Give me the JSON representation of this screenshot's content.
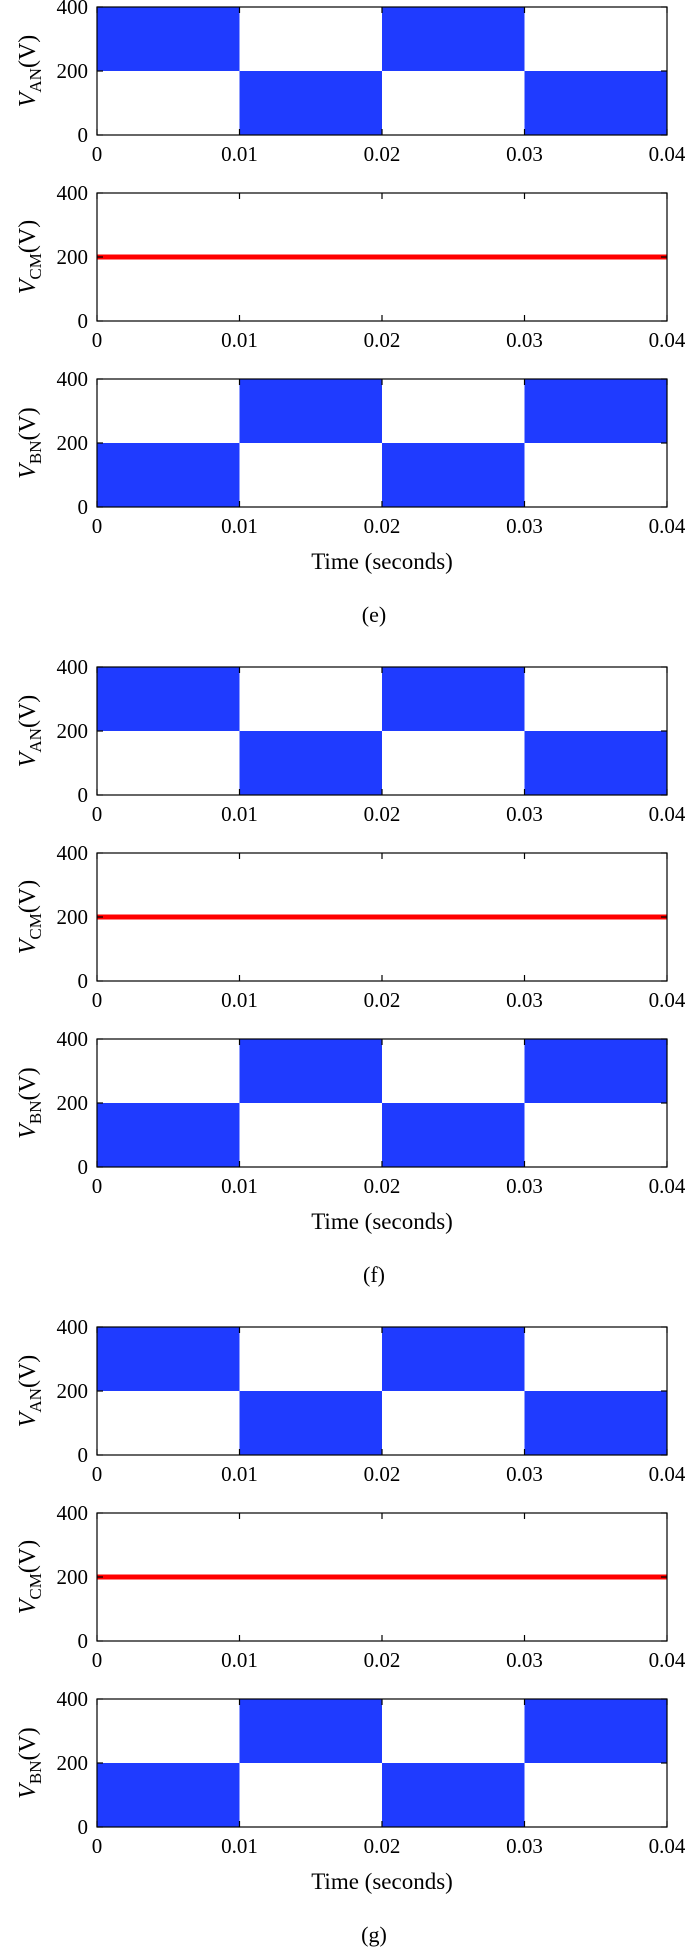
{
  "chart_data": [
    {
      "caption": "(e)",
      "xlabel": "Time (seconds)",
      "x_ticks": [
        "0",
        "0.01",
        "0.02",
        "0.03",
        "0.04"
      ],
      "xlim": [
        0,
        0.04
      ],
      "panels": [
        {
          "type": "area",
          "ylabel_main": "V",
          "ylabel_sub": "AN",
          "ylabel_unit": "(V)",
          "ylim": [
            0,
            400
          ],
          "y_ticks": [
            "0",
            "200",
            "400"
          ],
          "series": [
            {
              "color": "#1f3bff",
              "segments": [
                {
                  "x0": 0,
                  "x1": 0.01,
                  "low": 200,
                  "high": 400
                },
                {
                  "x0": 0.01,
                  "x1": 0.02,
                  "low": 0,
                  "high": 200
                },
                {
                  "x0": 0.02,
                  "x1": 0.03,
                  "low": 200,
                  "high": 400
                },
                {
                  "x0": 0.03,
                  "x1": 0.04,
                  "low": 0,
                  "high": 200
                }
              ]
            }
          ]
        },
        {
          "type": "line",
          "ylabel_main": "V",
          "ylabel_sub": "CM",
          "ylabel_unit": "(V)",
          "ylim": [
            0,
            400
          ],
          "y_ticks": [
            "0",
            "200",
            "400"
          ],
          "series": [
            {
              "color": "#ff0000",
              "x": [
                0,
                0.04
              ],
              "y": [
                200,
                200
              ]
            }
          ]
        },
        {
          "type": "area",
          "ylabel_main": "V",
          "ylabel_sub": "BN",
          "ylabel_unit": "(V)",
          "ylim": [
            0,
            400
          ],
          "y_ticks": [
            "0",
            "200",
            "400"
          ],
          "series": [
            {
              "color": "#1f3bff",
              "segments": [
                {
                  "x0": 0,
                  "x1": 0.01,
                  "low": 0,
                  "high": 200
                },
                {
                  "x0": 0.01,
                  "x1": 0.02,
                  "low": 200,
                  "high": 400
                },
                {
                  "x0": 0.02,
                  "x1": 0.03,
                  "low": 0,
                  "high": 200
                },
                {
                  "x0": 0.03,
                  "x1": 0.04,
                  "low": 200,
                  "high": 400
                }
              ]
            }
          ]
        }
      ]
    },
    {
      "caption": "(f)",
      "xlabel": "Time (seconds)",
      "x_ticks": [
        "0",
        "0.01",
        "0.02",
        "0.03",
        "0.04"
      ],
      "xlim": [
        0,
        0.04
      ],
      "panels": [
        {
          "type": "area",
          "ylabel_main": "V",
          "ylabel_sub": "AN",
          "ylabel_unit": "(V)",
          "ylim": [
            0,
            400
          ],
          "y_ticks": [
            "0",
            "200",
            "400"
          ],
          "series": [
            {
              "color": "#1f3bff",
              "segments": [
                {
                  "x0": 0,
                  "x1": 0.01,
                  "low": 200,
                  "high": 400
                },
                {
                  "x0": 0.01,
                  "x1": 0.02,
                  "low": 0,
                  "high": 200
                },
                {
                  "x0": 0.02,
                  "x1": 0.03,
                  "low": 200,
                  "high": 400
                },
                {
                  "x0": 0.03,
                  "x1": 0.04,
                  "low": 0,
                  "high": 200
                }
              ]
            }
          ]
        },
        {
          "type": "line",
          "ylabel_main": "V",
          "ylabel_sub": "CM",
          "ylabel_unit": "(V)",
          "ylim": [
            0,
            400
          ],
          "y_ticks": [
            "0",
            "200",
            "400"
          ],
          "series": [
            {
              "color": "#ff0000",
              "x": [
                0,
                0.04
              ],
              "y": [
                200,
                200
              ]
            }
          ]
        },
        {
          "type": "area",
          "ylabel_main": "V",
          "ylabel_sub": "BN",
          "ylabel_unit": "(V)",
          "ylim": [
            0,
            400
          ],
          "y_ticks": [
            "0",
            "200",
            "400"
          ],
          "series": [
            {
              "color": "#1f3bff",
              "segments": [
                {
                  "x0": 0,
                  "x1": 0.01,
                  "low": 0,
                  "high": 200
                },
                {
                  "x0": 0.01,
                  "x1": 0.02,
                  "low": 200,
                  "high": 400
                },
                {
                  "x0": 0.02,
                  "x1": 0.03,
                  "low": 0,
                  "high": 200
                },
                {
                  "x0": 0.03,
                  "x1": 0.04,
                  "low": 200,
                  "high": 400
                }
              ]
            }
          ]
        }
      ]
    },
    {
      "caption": "(g)",
      "xlabel": "Time (seconds)",
      "x_ticks": [
        "0",
        "0.01",
        "0.02",
        "0.03",
        "0.04"
      ],
      "xlim": [
        0,
        0.04
      ],
      "panels": [
        {
          "type": "area",
          "ylabel_main": "V",
          "ylabel_sub": "AN",
          "ylabel_unit": "(V)",
          "ylim": [
            0,
            400
          ],
          "y_ticks": [
            "0",
            "200",
            "400"
          ],
          "series": [
            {
              "color": "#1f3bff",
              "segments": [
                {
                  "x0": 0,
                  "x1": 0.01,
                  "low": 200,
                  "high": 400
                },
                {
                  "x0": 0.01,
                  "x1": 0.02,
                  "low": 0,
                  "high": 200
                },
                {
                  "x0": 0.02,
                  "x1": 0.03,
                  "low": 200,
                  "high": 400
                },
                {
                  "x0": 0.03,
                  "x1": 0.04,
                  "low": 0,
                  "high": 200
                }
              ]
            }
          ]
        },
        {
          "type": "line",
          "ylabel_main": "V",
          "ylabel_sub": "CM",
          "ylabel_unit": "(V)",
          "ylim": [
            0,
            400
          ],
          "y_ticks": [
            "0",
            "200",
            "400"
          ],
          "series": [
            {
              "color": "#ff0000",
              "x": [
                0,
                0.04
              ],
              "y": [
                200,
                200
              ]
            }
          ]
        },
        {
          "type": "area",
          "ylabel_main": "V",
          "ylabel_sub": "BN",
          "ylabel_unit": "(V)",
          "ylim": [
            0,
            400
          ],
          "y_ticks": [
            "0",
            "200",
            "400"
          ],
          "series": [
            {
              "color": "#1f3bff",
              "segments": [
                {
                  "x0": 0,
                  "x1": 0.01,
                  "low": 0,
                  "high": 200
                },
                {
                  "x0": 0.01,
                  "x1": 0.02,
                  "low": 200,
                  "high": 400
                },
                {
                  "x0": 0.02,
                  "x1": 0.03,
                  "low": 0,
                  "high": 200
                },
                {
                  "x0": 0.03,
                  "x1": 0.04,
                  "low": 200,
                  "high": 400
                }
              ]
            }
          ]
        }
      ]
    }
  ]
}
